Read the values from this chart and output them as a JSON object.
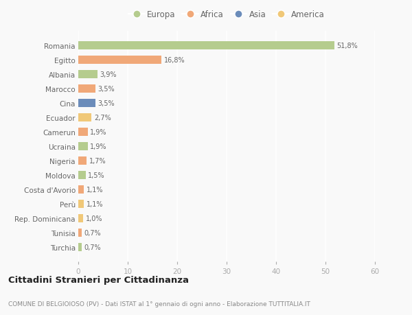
{
  "categories": [
    "Romania",
    "Egitto",
    "Albania",
    "Marocco",
    "Cina",
    "Ecuador",
    "Camerun",
    "Ucraina",
    "Nigeria",
    "Moldova",
    "Costa d'Avorio",
    "Perù",
    "Rep. Dominicana",
    "Tunisia",
    "Turchia"
  ],
  "values": [
    51.8,
    16.8,
    3.9,
    3.5,
    3.5,
    2.7,
    1.9,
    1.9,
    1.7,
    1.5,
    1.1,
    1.1,
    1.0,
    0.7,
    0.7
  ],
  "labels": [
    "51,8%",
    "16,8%",
    "3,9%",
    "3,5%",
    "3,5%",
    "2,7%",
    "1,9%",
    "1,9%",
    "1,7%",
    "1,5%",
    "1,1%",
    "1,1%",
    "1,0%",
    "0,7%",
    "0,7%"
  ],
  "colors": [
    "#b5cc8e",
    "#f0a878",
    "#b5cc8e",
    "#f0a878",
    "#6b8cba",
    "#f0c878",
    "#f0a878",
    "#b5cc8e",
    "#f0a878",
    "#b5cc8e",
    "#f0a878",
    "#f0c878",
    "#f0c878",
    "#f0a878",
    "#b5cc8e"
  ],
  "legend": [
    {
      "label": "Europa",
      "color": "#b5cc8e"
    },
    {
      "label": "Africa",
      "color": "#f0a878"
    },
    {
      "label": "Asia",
      "color": "#6b8cba"
    },
    {
      "label": "America",
      "color": "#f0c878"
    }
  ],
  "xlim": [
    0,
    60
  ],
  "xticks": [
    0,
    10,
    20,
    30,
    40,
    50,
    60
  ],
  "title": "Cittadini Stranieri per Cittadinanza",
  "subtitle": "COMUNE DI BELGIOIOSO (PV) - Dati ISTAT al 1° gennaio di ogni anno - Elaborazione TUTTITALIA.IT",
  "bg_color": "#f9f9f9",
  "grid_color": "#ffffff",
  "bar_height": 0.55
}
